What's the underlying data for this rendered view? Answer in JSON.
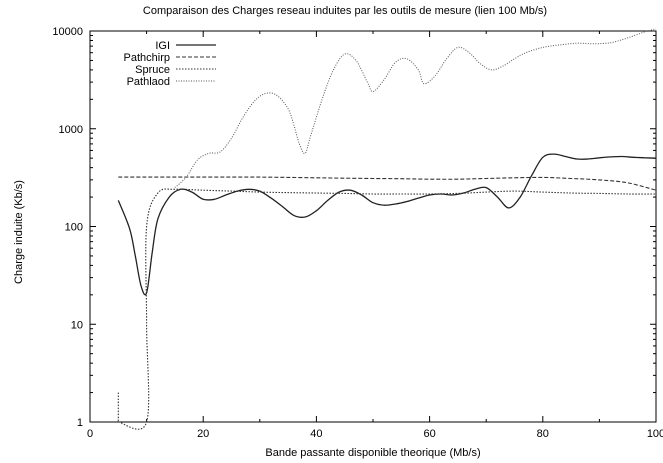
{
  "chart_data": {
    "type": "line",
    "title": "Comparaison des Charges reseau induites par les outils de mesure (lien 100 Mb/s)",
    "xlabel": "Bande passante disponible theorique (Mb/s)",
    "ylabel": "Charge induite (Kb/s)",
    "xlim": [
      0,
      100
    ],
    "ylim": [
      1,
      10000
    ],
    "yscale": "log",
    "xticks": [
      0,
      20,
      40,
      60,
      80,
      100
    ],
    "xtick_labels": [
      "0",
      "20",
      "40",
      "60",
      "80",
      "100"
    ],
    "yticks": [
      1,
      10,
      100,
      1000,
      10000
    ],
    "ytick_labels": [
      "1",
      "10",
      "100",
      "1000",
      "10000"
    ],
    "grid": false,
    "legend_position": "top-left",
    "series": [
      {
        "name": "IGI",
        "style": "solid",
        "x": [
          5,
          7,
          8,
          9,
          10,
          11,
          12,
          14,
          16,
          18,
          20,
          22,
          24,
          26,
          28,
          30,
          32,
          34,
          36,
          38,
          40,
          42,
          44,
          46,
          48,
          50,
          52,
          54,
          56,
          58,
          60,
          62,
          64,
          66,
          68,
          70,
          72,
          74,
          76,
          78,
          80,
          82,
          84,
          86,
          88,
          90,
          92,
          94,
          96,
          98,
          100
        ],
        "y": [
          185,
          95,
          50,
          25,
          21,
          55,
          120,
          200,
          240,
          225,
          190,
          190,
          210,
          230,
          240,
          230,
          195,
          160,
          130,
          125,
          145,
          185,
          225,
          235,
          210,
          175,
          165,
          170,
          180,
          195,
          210,
          215,
          210,
          220,
          240,
          250,
          200,
          155,
          200,
          330,
          510,
          550,
          520,
          490,
          490,
          505,
          515,
          520,
          510,
          505,
          500
        ]
      },
      {
        "name": "Pathchirp",
        "style": "dashed",
        "x": [
          5,
          10,
          15,
          20,
          25,
          30,
          35,
          40,
          45,
          50,
          55,
          60,
          65,
          70,
          75,
          80,
          85,
          90,
          95,
          100
        ],
        "y": [
          320,
          320,
          320,
          320,
          320,
          320,
          318,
          315,
          312,
          310,
          308,
          305,
          305,
          310,
          315,
          318,
          310,
          300,
          280,
          235
        ]
      },
      {
        "name": "Spruce",
        "style": "dotted",
        "x": [
          5,
          5,
          5,
          5,
          10,
          10,
          10,
          12,
          15,
          20,
          25,
          30,
          35,
          40,
          45,
          50,
          55,
          60,
          65,
          70,
          75,
          80,
          85,
          90,
          95,
          100
        ],
        "y": [
          2,
          1,
          null,
          1,
          1,
          10,
          100,
          220,
          240,
          235,
          230,
          225,
          222,
          220,
          218,
          215,
          215,
          215,
          218,
          225,
          230,
          225,
          220,
          218,
          215,
          215
        ]
      },
      {
        "name": "Pathlaod",
        "style": "dotted-light",
        "x": [
          15,
          17,
          19,
          21,
          23,
          25,
          27,
          29,
          31,
          33,
          35,
          36,
          37,
          38,
          39,
          41,
          43,
          45,
          47,
          49,
          50,
          52,
          54,
          56,
          58,
          59,
          61,
          63,
          65,
          67,
          69,
          71,
          73,
          75,
          77,
          80,
          83,
          86,
          89,
          92,
          95,
          98,
          100
        ],
        "y": [
          250,
          320,
          480,
          560,
          580,
          800,
          1300,
          1900,
          2300,
          2200,
          1600,
          1100,
          700,
          560,
          850,
          2000,
          4000,
          5800,
          5000,
          3000,
          2400,
          3200,
          4800,
          5200,
          4000,
          2900,
          3500,
          5200,
          6800,
          6000,
          4600,
          4000,
          4400,
          5200,
          6000,
          6800,
          7200,
          7500,
          7400,
          7600,
          8500,
          9800,
          10500
        ]
      }
    ]
  }
}
